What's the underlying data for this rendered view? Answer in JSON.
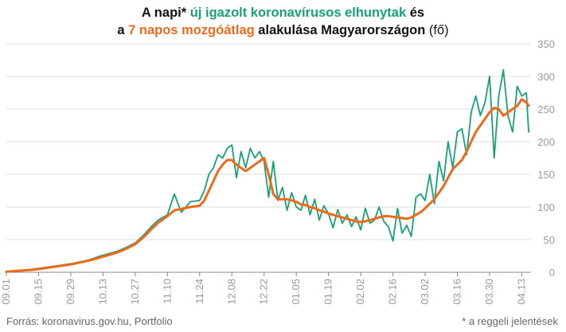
{
  "title": {
    "line1_p1": "A napi* ",
    "line1_green": "új igazolt koronavírusos elhunytak",
    "line1_p2": " és",
    "line2_p1": "a ",
    "line2_orange": "7 napos mozgóátlag",
    "line2_p2": " alakulása Magyarországon ",
    "line2_p3": "(fő)"
  },
  "footer": {
    "source": "Forrás: koronavirus.gov.hu, Portfolio",
    "note": "* a reggeli jelentések"
  },
  "colors": {
    "daily": "#17a07a",
    "ma": "#ee6a1a",
    "grid": "#dddddd",
    "axis": "#888888"
  },
  "chart_data": {
    "type": "line",
    "y_ticks": [
      0,
      50,
      100,
      150,
      200,
      250,
      300,
      350
    ],
    "ylim": [
      0,
      350
    ],
    "x_tick_labels": [
      "09.01",
      "09.15",
      "09.29",
      "10.13",
      "10.27",
      "11.10",
      "11.24",
      "12.08",
      "12.22",
      "01.05",
      "01.19",
      "02.02",
      "02.16",
      "03.02",
      "03.16",
      "03.30",
      "04.13"
    ],
    "x_tick_day_index": [
      0,
      14,
      28,
      42,
      56,
      70,
      84,
      98,
      112,
      126,
      140,
      154,
      168,
      182,
      196,
      210,
      224
    ],
    "x_range_days": [
      0,
      228
    ],
    "series": [
      {
        "name": "új igazolt koronavírusos elhunytak",
        "color": "#17a07a",
        "day": [
          0,
          4,
          8,
          12,
          16,
          20,
          24,
          28,
          32,
          36,
          40,
          44,
          48,
          52,
          56,
          60,
          63,
          66,
          70,
          73,
          76,
          80,
          84,
          86,
          88,
          90,
          92,
          94,
          96,
          98,
          100,
          102,
          104,
          106,
          108,
          110,
          112,
          114,
          116,
          118,
          120,
          122,
          124,
          126,
          128,
          130,
          132,
          134,
          136,
          138,
          140,
          142,
          144,
          146,
          148,
          150,
          152,
          154,
          156,
          158,
          160,
          162,
          164,
          166,
          168,
          170,
          172,
          174,
          176,
          178,
          180,
          182,
          184,
          186,
          188,
          190,
          192,
          194,
          196,
          198,
          200,
          202,
          204,
          206,
          208,
          210,
          212,
          214,
          216,
          218,
          220,
          222,
          224,
          226,
          227
        ],
        "values": [
          1,
          2,
          3,
          5,
          7,
          9,
          11,
          13,
          16,
          19,
          24,
          28,
          32,
          38,
          45,
          58,
          70,
          80,
          88,
          120,
          92,
          108,
          110,
          125,
          150,
          160,
          180,
          175,
          190,
          195,
          145,
          185,
          160,
          190,
          175,
          185,
          170,
          115,
          170,
          110,
          130,
          95,
          122,
          100,
          95,
          118,
          88,
          112,
          80,
          102,
          90,
          68,
          96,
          75,
          88,
          70,
          85,
          65,
          98,
          75,
          80,
          100,
          78,
          70,
          48,
          98,
          60,
          72,
          55,
          115,
          120,
          110,
          150,
          105,
          170,
          140,
          200,
          160,
          215,
          220,
          180,
          245,
          270,
          240,
          260,
          300,
          175,
          270,
          310,
          240,
          215,
          285,
          270,
          275,
          215
        ]
      },
      {
        "name": "7 napos mozgóátlag",
        "color": "#ee6a1a",
        "day": [
          0,
          4,
          8,
          12,
          16,
          20,
          24,
          28,
          32,
          36,
          40,
          44,
          48,
          52,
          56,
          60,
          63,
          66,
          70,
          73,
          76,
          80,
          84,
          86,
          88,
          90,
          92,
          94,
          96,
          98,
          100,
          102,
          104,
          106,
          108,
          110,
          112,
          114,
          116,
          118,
          120,
          122,
          124,
          126,
          128,
          130,
          132,
          134,
          136,
          138,
          140,
          142,
          144,
          146,
          148,
          150,
          152,
          154,
          156,
          158,
          160,
          162,
          164,
          166,
          168,
          170,
          172,
          174,
          176,
          178,
          180,
          182,
          184,
          186,
          188,
          190,
          192,
          194,
          196,
          198,
          200,
          202,
          204,
          206,
          208,
          210,
          212,
          214,
          216,
          218,
          220,
          222,
          224,
          226,
          227
        ],
        "values": [
          1,
          2,
          3,
          4,
          6,
          8,
          10,
          12,
          15,
          18,
          22,
          26,
          30,
          36,
          43,
          55,
          66,
          76,
          86,
          95,
          97,
          100,
          102,
          110,
          125,
          140,
          155,
          165,
          172,
          172,
          165,
          160,
          155,
          160,
          165,
          170,
          175,
          150,
          120,
          112,
          112,
          112,
          110,
          108,
          104,
          103,
          100,
          98,
          95,
          93,
          90,
          88,
          86,
          84,
          82,
          80,
          78,
          77,
          78,
          80,
          82,
          84,
          86,
          86,
          85,
          84,
          83,
          82,
          84,
          88,
          92,
          98,
          105,
          112,
          122,
          132,
          145,
          158,
          165,
          172,
          185,
          200,
          215,
          225,
          235,
          245,
          252,
          250,
          240,
          245,
          250,
          255,
          265,
          260,
          255
        ]
      }
    ]
  }
}
